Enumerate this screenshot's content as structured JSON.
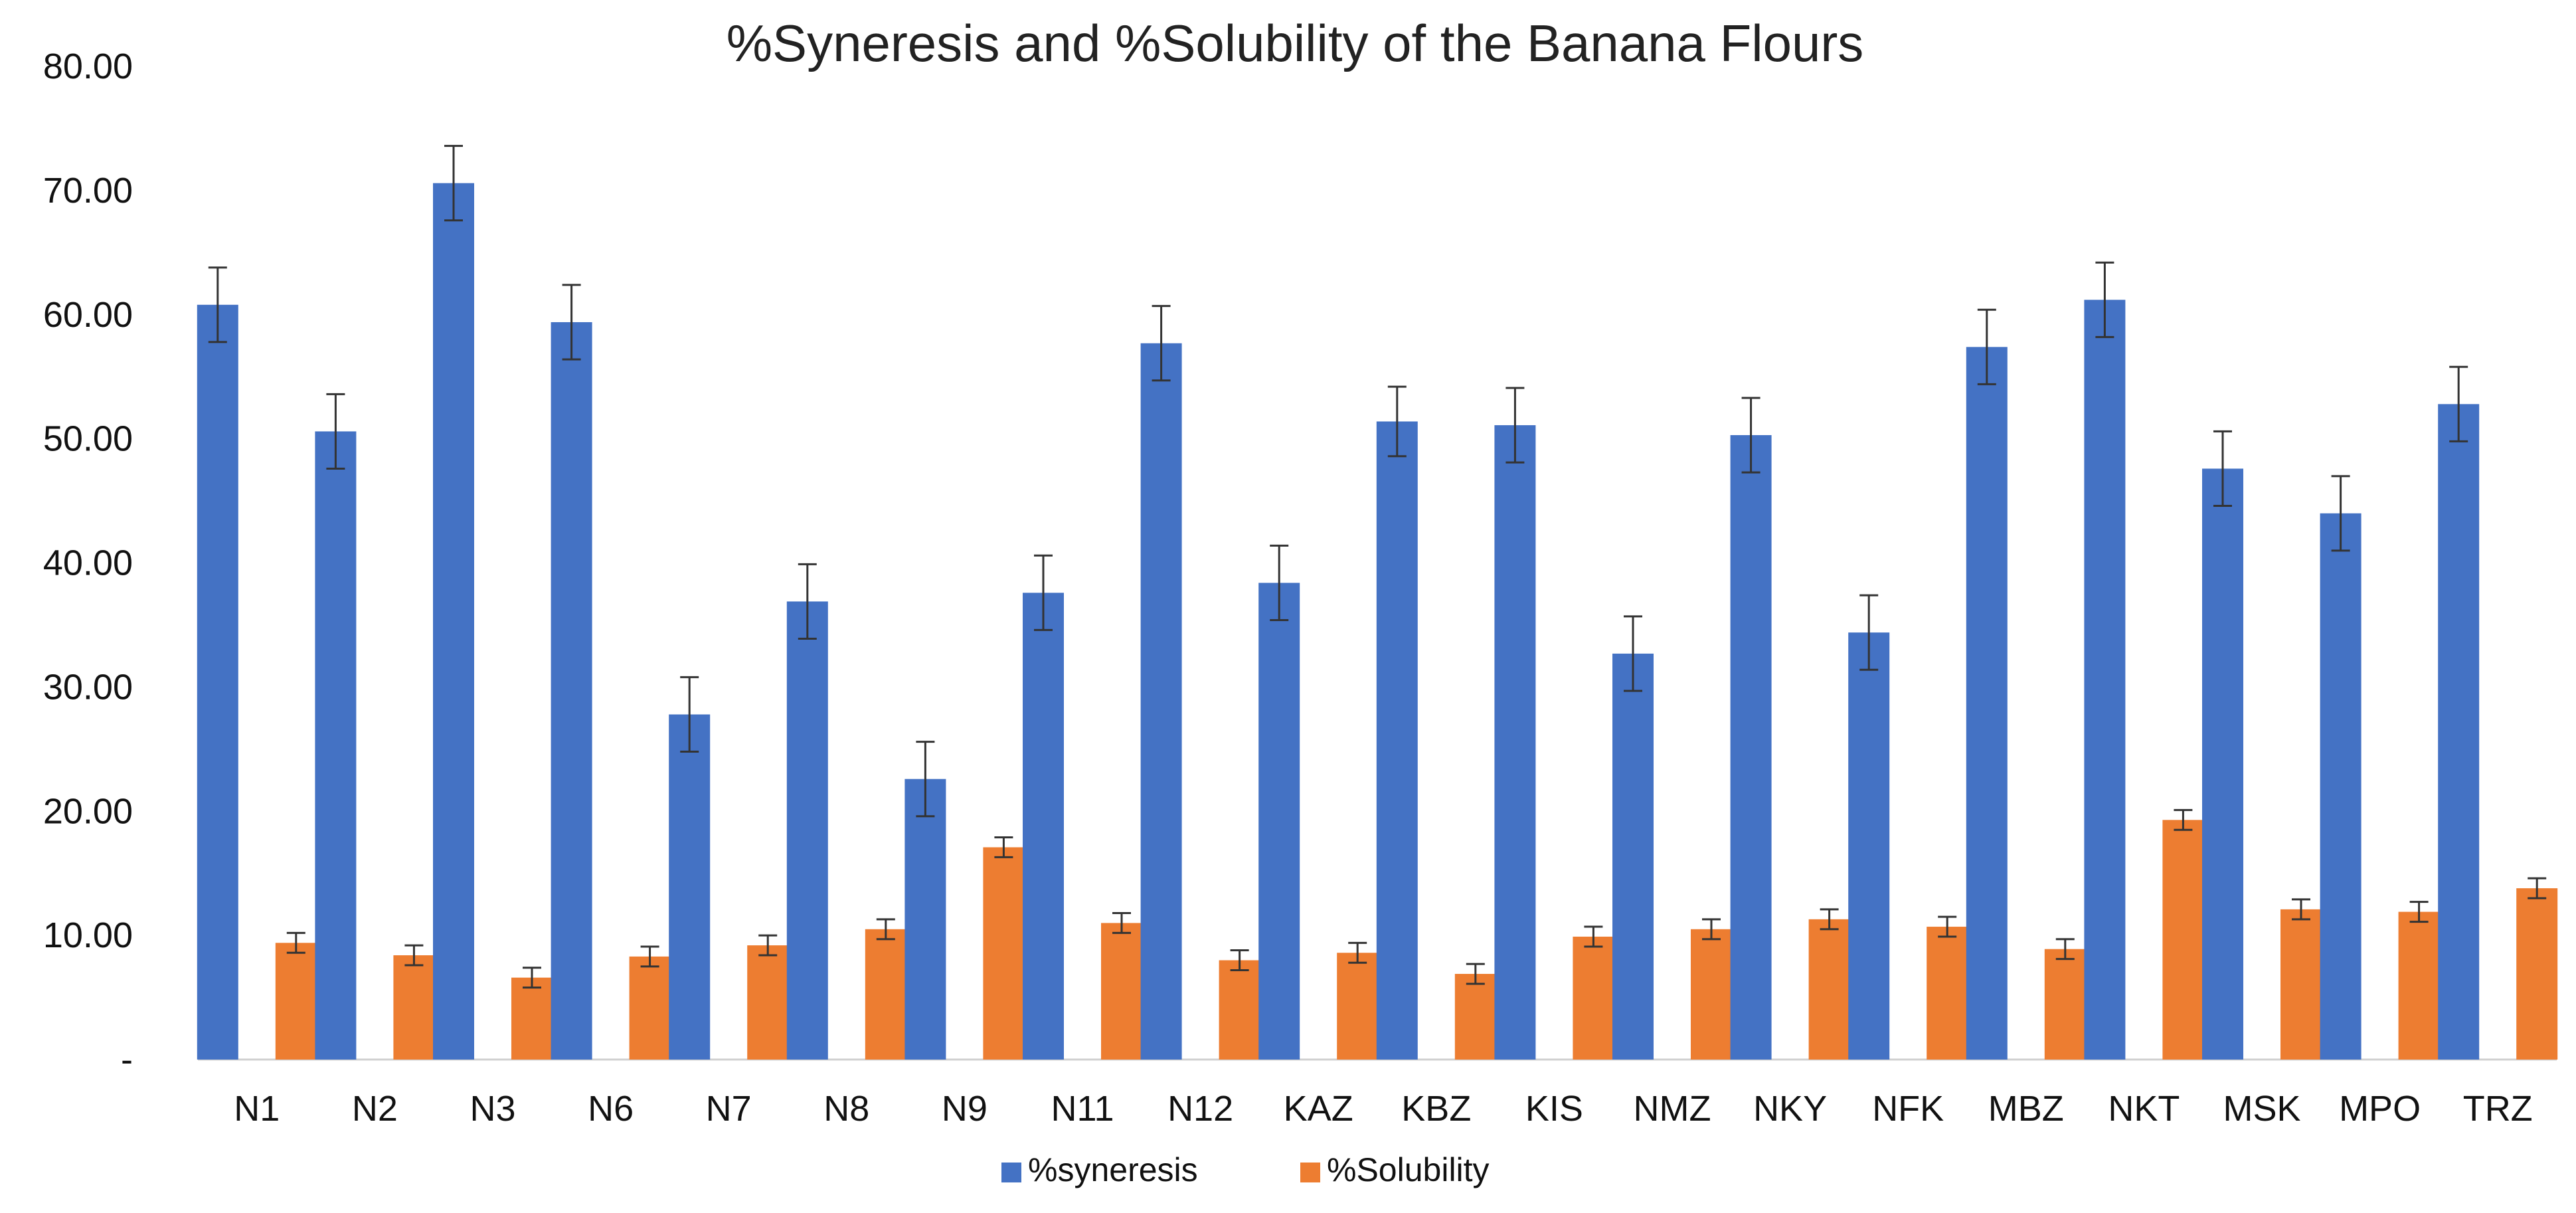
{
  "chart_data": {
    "type": "bar",
    "title": "%Syneresis and %Solubility of the Banana Flours",
    "xlabel": "",
    "ylabel": "",
    "ylim": [
      0,
      80
    ],
    "yticks": [
      {
        "value": 0,
        "label": "-"
      },
      {
        "value": 10,
        "label": "10.00"
      },
      {
        "value": 20,
        "label": "20.00"
      },
      {
        "value": 30,
        "label": "30.00"
      },
      {
        "value": 40,
        "label": "40.00"
      },
      {
        "value": 50,
        "label": "50.00"
      },
      {
        "value": 60,
        "label": "60.00"
      },
      {
        "value": 70,
        "label": "70.00"
      },
      {
        "value": 80,
        "label": "80.00"
      }
    ],
    "categories": [
      "N1",
      "N2",
      "N3",
      "N6",
      "N7",
      "N8",
      "N9",
      "N11",
      "N12",
      "KAZ",
      "KBZ",
      "KIS",
      "NMZ",
      "NKY",
      "NFK",
      "MBZ",
      "NKT",
      "MSK",
      "MPO",
      "TRZ"
    ],
    "series": [
      {
        "name": "%syneresis",
        "color": "#4472c4",
        "values": [
          60.8,
          50.6,
          70.6,
          59.4,
          27.8,
          36.9,
          22.6,
          37.6,
          57.7,
          38.4,
          51.4,
          51.1,
          32.7,
          50.3,
          34.4,
          57.4,
          61.2,
          47.6,
          44.0,
          52.8
        ],
        "errors": [
          3,
          3,
          3,
          3,
          3,
          3,
          3,
          3,
          3,
          3,
          2.8,
          3,
          3,
          3,
          3,
          3,
          3,
          3,
          3,
          3
        ]
      },
      {
        "name": "%Solubility",
        "color": "#ed7d31",
        "values": [
          9.4,
          8.4,
          6.6,
          8.3,
          9.2,
          10.5,
          17.1,
          11.0,
          8.0,
          8.6,
          6.9,
          9.9,
          10.5,
          11.3,
          10.7,
          8.9,
          19.3,
          12.1,
          11.9,
          13.8
        ],
        "errors": [
          0.8,
          0.8,
          0.8,
          0.8,
          0.8,
          0.8,
          0.8,
          0.8,
          0.8,
          0.8,
          0.8,
          0.8,
          0.8,
          0.8,
          0.8,
          0.8,
          0.8,
          0.8,
          0.8,
          0.8
        ]
      }
    ],
    "grid": false,
    "legend_position": "bottom-center"
  }
}
